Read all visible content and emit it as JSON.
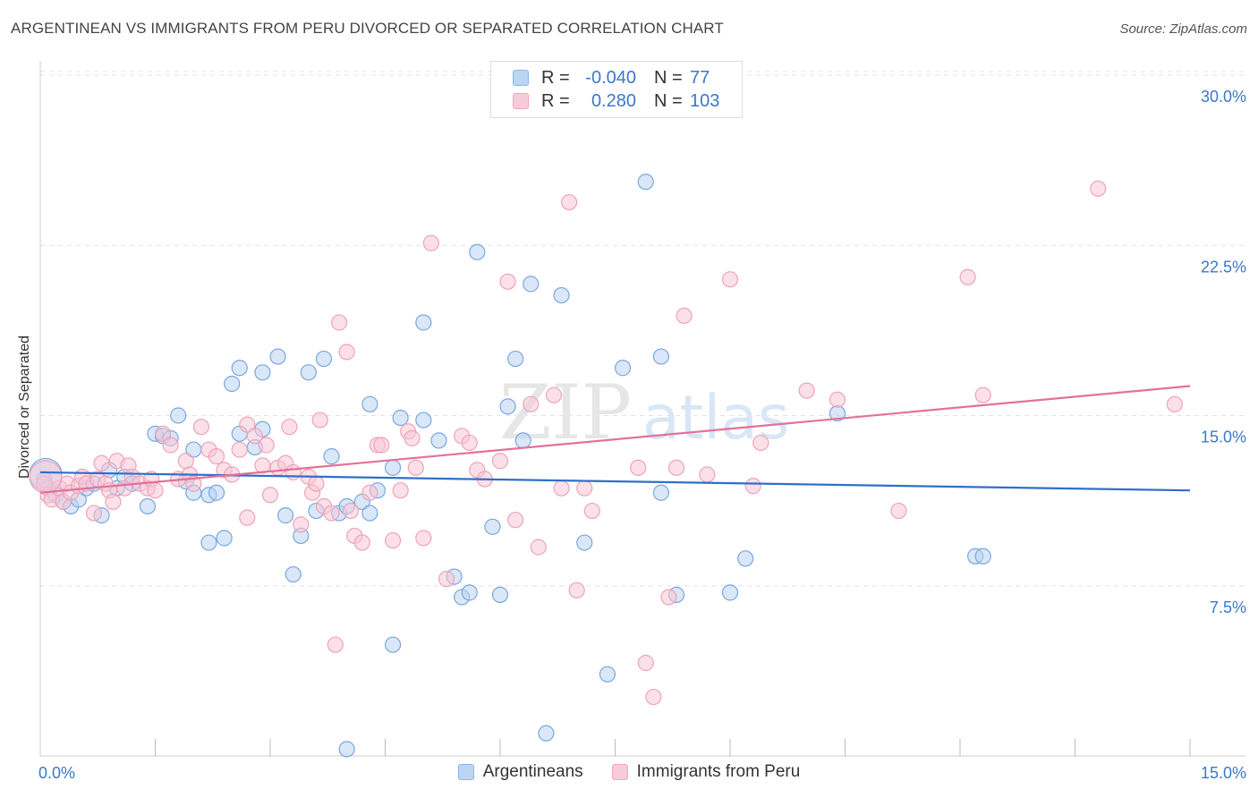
{
  "header": {
    "title": "ARGENTINEAN VS IMMIGRANTS FROM PERU DIVORCED OR SEPARATED CORRELATION CHART",
    "source": "Source: ZipAtlas.com"
  },
  "watermark": {
    "zip": "ZIP",
    "atlas": "atlas"
  },
  "legend": {
    "rows": [
      {
        "r_label": "R =",
        "r_value": "-0.040",
        "n_label": "N =",
        "n_value": "77",
        "color": "#8ab4e8",
        "fill": "#bcd5f3"
      },
      {
        "r_label": "R =",
        "r_value": "0.280",
        "n_label": "N =",
        "n_value": "103",
        "color": "#f0a6bf",
        "fill": "#f8cbd8"
      }
    ]
  },
  "colors": {
    "blue_stroke": "#7aa7de",
    "blue_fill": "#b9d3f2",
    "blue_line": "#2f6fca",
    "pink_stroke": "#eea3bb",
    "pink_fill": "#f7c7d6",
    "pink_line": "#e4709a",
    "tick_label": "#3b78c8",
    "grid": "#e3e3e3"
  },
  "chart_data": {
    "type": "scatter",
    "xlabel": "",
    "ylabel": "Divorced or Separated",
    "xlim": [
      0,
      15
    ],
    "ylim": [
      0,
      30
    ],
    "x_ticks": [
      {
        "value": 0,
        "label": "0.0%"
      },
      {
        "value": 15,
        "label": "15.0%"
      }
    ],
    "y_ticks": [
      {
        "value": 7.5,
        "label": "7.5%"
      },
      {
        "value": 15,
        "label": "15.0%"
      },
      {
        "value": 22.5,
        "label": "22.5%"
      },
      {
        "value": 30,
        "label": "30.0%"
      }
    ],
    "grid": "horizontal dashed",
    "legend_position": "top-center",
    "series": [
      {
        "name": "Argentineans",
        "trend": {
          "x": [
            0,
            15
          ],
          "y": [
            12.5,
            11.7
          ]
        },
        "points": [
          [
            0.05,
            12.2
          ],
          [
            0.1,
            11.8
          ],
          [
            0.2,
            11.5
          ],
          [
            0.3,
            11.2
          ],
          [
            0.4,
            11.0
          ],
          [
            0.5,
            11.3
          ],
          [
            0.6,
            11.8
          ],
          [
            0.7,
            12.0
          ],
          [
            0.8,
            10.6
          ],
          [
            0.9,
            12.6
          ],
          [
            1.0,
            11.8
          ],
          [
            1.1,
            12.3
          ],
          [
            1.2,
            12.0
          ],
          [
            1.4,
            11.0
          ],
          [
            1.5,
            14.2
          ],
          [
            1.6,
            14.1
          ],
          [
            1.7,
            14.0
          ],
          [
            1.8,
            15.0
          ],
          [
            1.9,
            12.1
          ],
          [
            2.0,
            13.5
          ],
          [
            2.0,
            11.6
          ],
          [
            2.2,
            11.5
          ],
          [
            2.2,
            9.4
          ],
          [
            2.3,
            11.6
          ],
          [
            2.4,
            9.6
          ],
          [
            2.5,
            16.4
          ],
          [
            2.6,
            17.1
          ],
          [
            2.6,
            14.2
          ],
          [
            2.8,
            13.6
          ],
          [
            2.9,
            14.4
          ],
          [
            2.9,
            16.9
          ],
          [
            3.1,
            17.6
          ],
          [
            3.2,
            10.6
          ],
          [
            3.3,
            8.0
          ],
          [
            3.4,
            9.7
          ],
          [
            3.5,
            16.9
          ],
          [
            3.6,
            10.8
          ],
          [
            3.7,
            17.5
          ],
          [
            3.8,
            13.2
          ],
          [
            3.9,
            10.7
          ],
          [
            4.0,
            11.0
          ],
          [
            4.0,
            0.3
          ],
          [
            4.2,
            11.2
          ],
          [
            4.3,
            15.5
          ],
          [
            4.3,
            10.7
          ],
          [
            4.4,
            11.7
          ],
          [
            4.6,
            12.7
          ],
          [
            4.6,
            4.9
          ],
          [
            4.7,
            14.9
          ],
          [
            5.0,
            14.8
          ],
          [
            5.0,
            19.1
          ],
          [
            5.2,
            13.9
          ],
          [
            5.4,
            7.9
          ],
          [
            5.5,
            7.0
          ],
          [
            5.6,
            7.2
          ],
          [
            5.7,
            22.2
          ],
          [
            5.9,
            10.1
          ],
          [
            6.0,
            7.1
          ],
          [
            6.1,
            15.4
          ],
          [
            6.2,
            17.5
          ],
          [
            6.3,
            13.9
          ],
          [
            6.4,
            20.8
          ],
          [
            6.6,
            1.0
          ],
          [
            6.8,
            20.3
          ],
          [
            7.1,
            9.4
          ],
          [
            7.4,
            3.6
          ],
          [
            7.6,
            17.1
          ],
          [
            7.9,
            25.3
          ],
          [
            8.1,
            11.6
          ],
          [
            8.1,
            17.6
          ],
          [
            8.3,
            7.1
          ],
          [
            9.0,
            7.2
          ],
          [
            9.2,
            8.7
          ],
          [
            10.4,
            15.1
          ],
          [
            12.2,
            8.8
          ],
          [
            12.3,
            8.8
          ],
          [
            0.0,
            12.4
          ]
        ]
      },
      {
        "name": "Immigrants from Peru",
        "trend": {
          "x": [
            0,
            15
          ],
          "y": [
            11.6,
            16.3
          ]
        },
        "points": [
          [
            0.05,
            12.0
          ],
          [
            0.1,
            11.5
          ],
          [
            0.15,
            11.3
          ],
          [
            0.25,
            11.8
          ],
          [
            0.3,
            11.2
          ],
          [
            0.35,
            12.0
          ],
          [
            0.4,
            11.6
          ],
          [
            0.5,
            11.9
          ],
          [
            0.55,
            12.3
          ],
          [
            0.6,
            12.0
          ],
          [
            0.7,
            10.7
          ],
          [
            0.75,
            12.2
          ],
          [
            0.8,
            12.9
          ],
          [
            0.85,
            12.0
          ],
          [
            0.9,
            11.7
          ],
          [
            0.95,
            11.2
          ],
          [
            1.0,
            13.0
          ],
          [
            1.1,
            11.8
          ],
          [
            1.15,
            12.8
          ],
          [
            1.2,
            12.3
          ],
          [
            1.3,
            12.0
          ],
          [
            1.4,
            11.8
          ],
          [
            1.45,
            12.2
          ],
          [
            1.5,
            11.7
          ],
          [
            1.6,
            14.2
          ],
          [
            1.7,
            13.7
          ],
          [
            1.8,
            12.2
          ],
          [
            1.9,
            13.0
          ],
          [
            1.95,
            12.4
          ],
          [
            2.0,
            12.0
          ],
          [
            2.1,
            14.5
          ],
          [
            2.2,
            13.5
          ],
          [
            2.3,
            13.2
          ],
          [
            2.4,
            12.6
          ],
          [
            2.5,
            12.4
          ],
          [
            2.6,
            13.5
          ],
          [
            2.7,
            14.6
          ],
          [
            2.7,
            10.5
          ],
          [
            2.8,
            14.1
          ],
          [
            2.9,
            12.8
          ],
          [
            2.95,
            13.7
          ],
          [
            3.0,
            11.5
          ],
          [
            3.1,
            12.7
          ],
          [
            3.2,
            12.9
          ],
          [
            3.25,
            14.5
          ],
          [
            3.3,
            12.5
          ],
          [
            3.4,
            10.2
          ],
          [
            3.5,
            12.3
          ],
          [
            3.55,
            11.6
          ],
          [
            3.6,
            12.0
          ],
          [
            3.65,
            14.8
          ],
          [
            3.7,
            11.0
          ],
          [
            3.8,
            10.7
          ],
          [
            3.85,
            4.9
          ],
          [
            3.9,
            19.1
          ],
          [
            4.0,
            17.8
          ],
          [
            4.05,
            10.8
          ],
          [
            4.1,
            9.7
          ],
          [
            4.2,
            9.4
          ],
          [
            4.3,
            11.6
          ],
          [
            4.4,
            13.7
          ],
          [
            4.45,
            13.7
          ],
          [
            4.6,
            9.5
          ],
          [
            4.7,
            11.7
          ],
          [
            4.8,
            14.3
          ],
          [
            4.85,
            14.0
          ],
          [
            4.9,
            12.7
          ],
          [
            5.0,
            9.6
          ],
          [
            5.1,
            22.6
          ],
          [
            5.3,
            7.8
          ],
          [
            5.5,
            14.1
          ],
          [
            5.6,
            13.8
          ],
          [
            5.7,
            12.6
          ],
          [
            5.8,
            12.2
          ],
          [
            6.0,
            13.0
          ],
          [
            6.1,
            20.9
          ],
          [
            6.2,
            10.4
          ],
          [
            6.4,
            15.5
          ],
          [
            6.5,
            9.2
          ],
          [
            6.7,
            15.9
          ],
          [
            6.8,
            11.8
          ],
          [
            6.9,
            24.4
          ],
          [
            7.0,
            7.3
          ],
          [
            7.1,
            11.8
          ],
          [
            7.2,
            10.8
          ],
          [
            7.8,
            12.7
          ],
          [
            7.9,
            4.1
          ],
          [
            8.0,
            2.6
          ],
          [
            8.2,
            7.0
          ],
          [
            8.3,
            12.7
          ],
          [
            8.4,
            19.4
          ],
          [
            8.7,
            12.4
          ],
          [
            9.0,
            21.0
          ],
          [
            9.3,
            11.9
          ],
          [
            9.4,
            13.8
          ],
          [
            10.0,
            16.1
          ],
          [
            10.4,
            15.7
          ],
          [
            11.2,
            10.8
          ],
          [
            12.1,
            21.1
          ],
          [
            12.3,
            15.9
          ],
          [
            13.8,
            25.0
          ],
          [
            14.8,
            15.5
          ],
          [
            0.0,
            12.3
          ]
        ]
      }
    ]
  },
  "bottom_legend": [
    {
      "label": "Argentineans"
    },
    {
      "label": "Immigrants from Peru"
    }
  ]
}
